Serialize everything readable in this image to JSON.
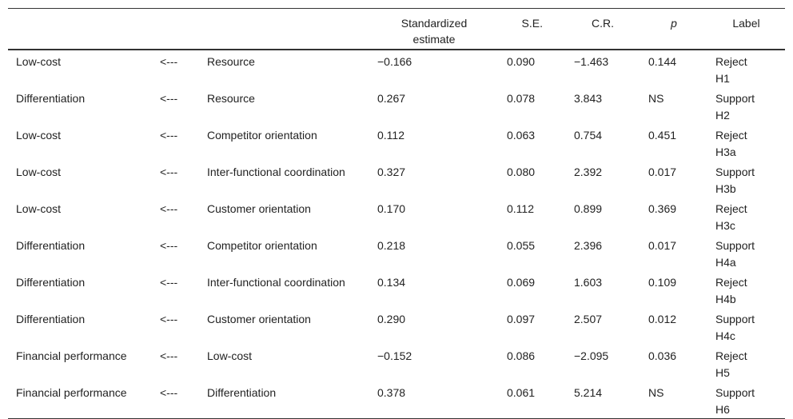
{
  "table": {
    "header": [
      "Standardized estimate",
      "S.E.",
      "C.R.",
      "p",
      "Label"
    ],
    "rows": [
      [
        "Low-cost",
        "<---",
        "Resource",
        "−0.166",
        "0.090",
        "−1.463",
        "0.144",
        "Reject H1"
      ],
      [
        "Differentiation",
        "<---",
        "Resource",
        "0.267",
        "0.078",
        "3.843",
        "NS",
        "Support H2"
      ],
      [
        "Low-cost",
        "<---",
        "Competitor orientation",
        "0.112",
        "0.063",
        "0.754",
        "0.451",
        "Reject H3a"
      ],
      [
        "Low-cost",
        "<---",
        "Inter-functional coordination",
        "0.327",
        "0.080",
        "2.392",
        "0.017",
        "Support H3b"
      ],
      [
        "Low-cost",
        "<---",
        "Customer orientation",
        "0.170",
        "0.112",
        "0.899",
        "0.369",
        "Reject H3c"
      ],
      [
        "Differentiation",
        "<---",
        "Competitor orientation",
        "0.218",
        "0.055",
        "2.396",
        "0.017",
        "Support H4a"
      ],
      [
        "Differentiation",
        "<---",
        "Inter-functional coordination",
        "0.134",
        "0.069",
        "1.603",
        "0.109",
        "Reject H4b"
      ],
      [
        "Differentiation",
        "<---",
        "Customer orientation",
        "0.290",
        "0.097",
        "2.507",
        "0.012",
        "Support H4c"
      ],
      [
        "Financial performance",
        "<---",
        "Low-cost",
        "−0.152",
        "0.086",
        "−2.095",
        "0.036",
        "Reject H5"
      ],
      [
        "Financial performance",
        "<---",
        "Differentiation",
        "0.378",
        "0.061",
        "5.214",
        "NS",
        "Support H6"
      ]
    ]
  }
}
